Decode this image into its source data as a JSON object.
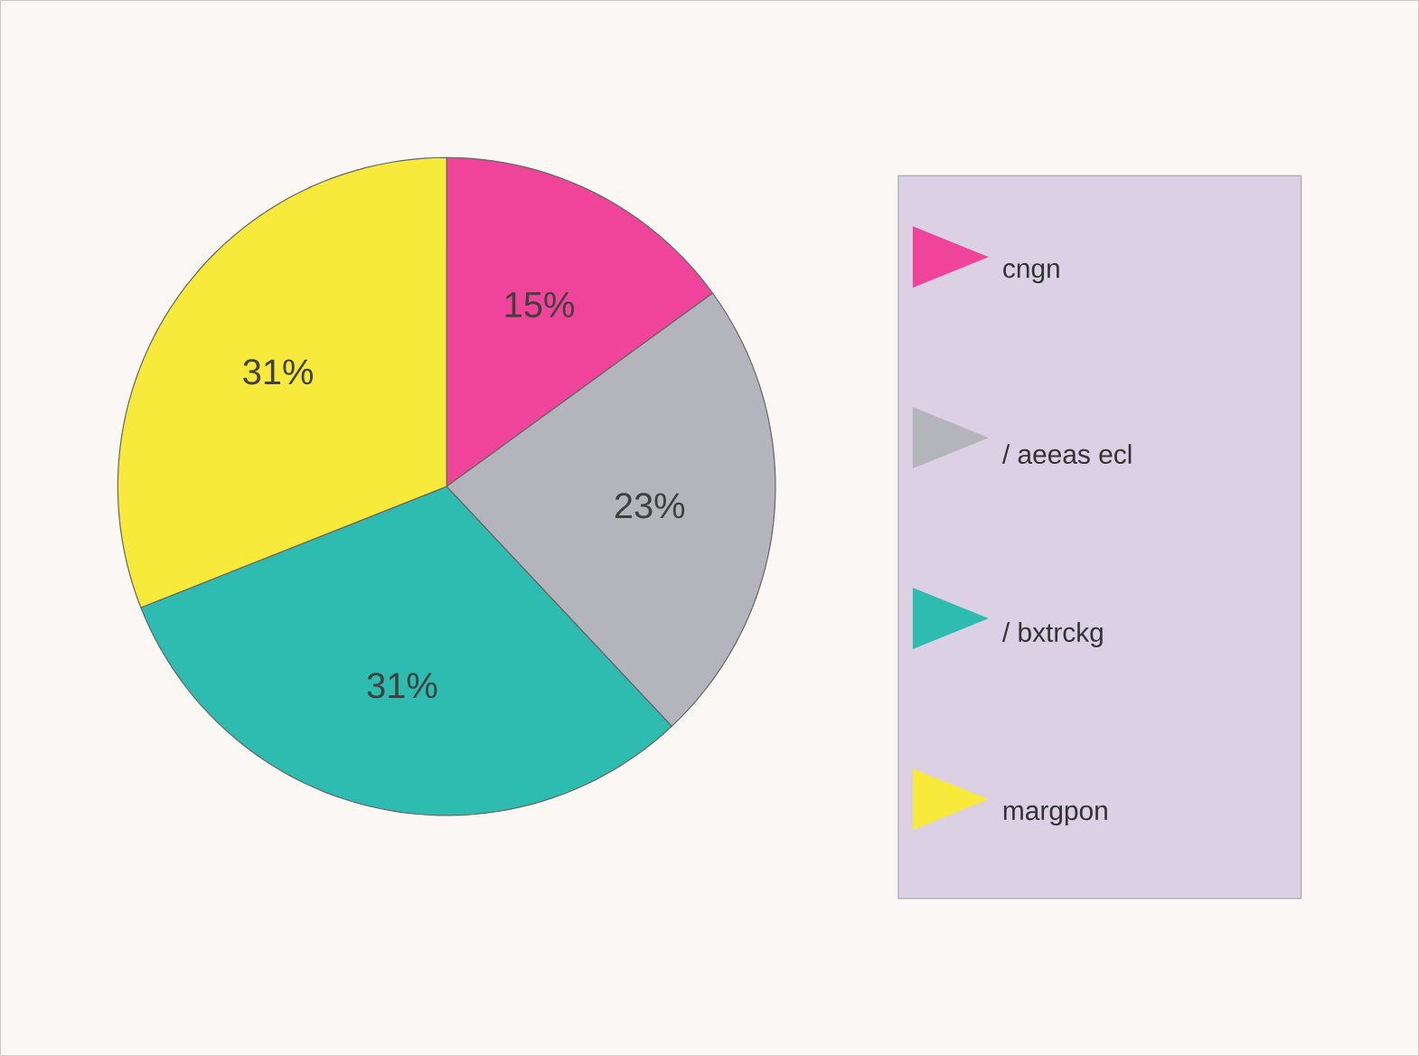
{
  "chart_data": {
    "type": "pie",
    "categories": [
      "cngn",
      "/ aeeas ecl",
      "/ bxtrckg",
      "margpon"
    ],
    "values": [
      15,
      23,
      31,
      31
    ],
    "colors": [
      "#f0439a",
      "#b4b4bc",
      "#2fbcb0",
      "#f7ea3a"
    ],
    "value_labels": [
      "15%",
      "23%",
      "31%",
      "31%"
    ],
    "legend": "right"
  }
}
